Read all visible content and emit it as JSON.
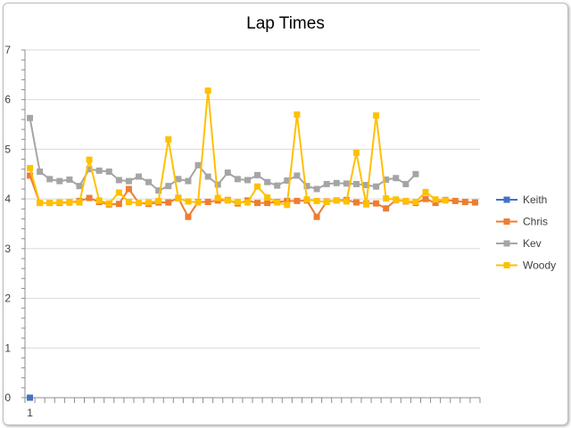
{
  "chart_data": {
    "type": "line",
    "title": "Lap Times",
    "xlabel": "",
    "ylabel": "",
    "ylim": [
      0,
      7
    ],
    "y_ticks": [
      0,
      1,
      2,
      3,
      4,
      5,
      6,
      7
    ],
    "x_tick_labels": [
      "1"
    ],
    "x_count": 46,
    "grid": "horizontal",
    "legend_position": "right",
    "series": [
      {
        "name": "Keith",
        "color": "#4472c4",
        "marker": "square",
        "values": [
          0
        ]
      },
      {
        "name": "Chris",
        "color": "#ed7d31",
        "marker": "square",
        "values": [
          4.47,
          3.92,
          3.92,
          3.92,
          3.93,
          3.96,
          4.02,
          3.94,
          3.89,
          3.9,
          4.2,
          3.92,
          3.9,
          3.93,
          3.93,
          4.02,
          3.64,
          3.94,
          3.94,
          3.97,
          3.98,
          3.91,
          3.97,
          3.92,
          3.92,
          3.94,
          3.96,
          3.96,
          3.97,
          3.64,
          3.95,
          3.97,
          3.98,
          3.93,
          3.91,
          3.91,
          3.81,
          3.98,
          3.95,
          3.92,
          4.0,
          3.92,
          3.98,
          3.96,
          3.94,
          3.93
        ]
      },
      {
        "name": "Kev",
        "color": "#a5a5a5",
        "marker": "square",
        "values": [
          5.63,
          4.55,
          4.4,
          4.36,
          4.39,
          4.26,
          4.6,
          4.57,
          4.55,
          4.38,
          4.36,
          4.45,
          4.34,
          4.17,
          4.26,
          4.4,
          4.36,
          4.68,
          4.45,
          4.29,
          4.53,
          4.4,
          4.38,
          4.48,
          4.34,
          4.27,
          4.37,
          4.47,
          4.26,
          4.2,
          4.3,
          4.32,
          4.31,
          4.3,
          4.28,
          4.25,
          4.39,
          4.42,
          4.3,
          4.5
        ]
      },
      {
        "name": "Woody",
        "color": "#ffc000",
        "marker": "square",
        "values": [
          4.62,
          3.92,
          3.92,
          3.93,
          3.94,
          3.93,
          4.79,
          3.97,
          3.91,
          4.13,
          3.94,
          3.92,
          3.93,
          3.96,
          5.2,
          4.01,
          3.95,
          3.93,
          6.18,
          4.02,
          3.97,
          3.94,
          3.93,
          4.25,
          4.03,
          3.93,
          3.88,
          5.7,
          3.99,
          3.96,
          3.94,
          3.97,
          3.95,
          4.93,
          3.89,
          5.68,
          4.01,
          3.99,
          3.96,
          3.94,
          4.14,
          3.99,
          3.97
        ]
      }
    ]
  }
}
